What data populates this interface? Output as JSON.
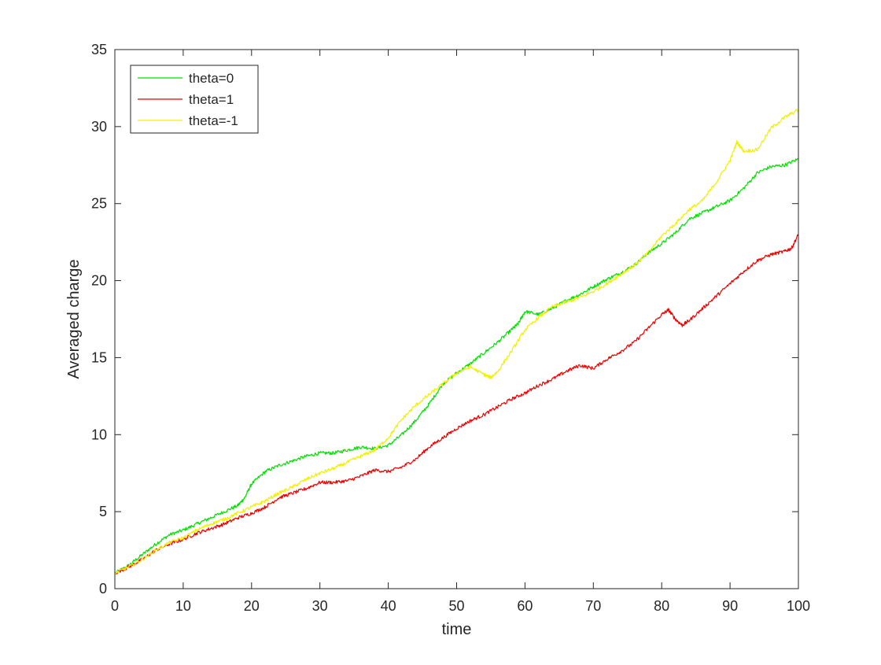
{
  "chart_data": {
    "type": "line",
    "title": "",
    "xlabel": "time",
    "ylabel": "Averaged charge",
    "xlim": [
      0,
      100
    ],
    "ylim": [
      0,
      35
    ],
    "xticks": [
      0,
      10,
      20,
      30,
      40,
      50,
      60,
      70,
      80,
      90,
      100
    ],
    "yticks": [
      0,
      5,
      10,
      15,
      20,
      25,
      30,
      35
    ],
    "grid": false,
    "legend_position": "top-left",
    "series": [
      {
        "name": "theta=0",
        "color": "#00e000",
        "x": [
          0,
          2,
          4,
          6,
          8,
          10,
          12,
          14,
          16,
          18,
          19,
          20,
          22,
          24,
          26,
          28,
          30,
          32,
          34,
          36,
          38,
          40,
          42,
          44,
          46,
          48,
          50,
          52,
          54,
          56,
          58,
          59,
          60,
          62,
          64,
          66,
          68,
          70,
          72,
          74,
          76,
          78,
          80,
          82,
          84,
          86,
          88,
          90,
          92,
          94,
          96,
          98,
          100
        ],
        "y": [
          1.0,
          1.5,
          2.2,
          2.9,
          3.5,
          3.8,
          4.2,
          4.6,
          5.0,
          5.4,
          5.9,
          6.8,
          7.6,
          8.0,
          8.3,
          8.6,
          8.8,
          8.8,
          9.0,
          9.2,
          9.1,
          9.3,
          10.0,
          10.9,
          12.0,
          13.3,
          14.0,
          14.6,
          15.3,
          16.0,
          16.8,
          17.2,
          18.0,
          17.8,
          18.2,
          18.7,
          19.1,
          19.6,
          20.1,
          20.5,
          21.0,
          21.8,
          22.4,
          23.1,
          24.0,
          24.4,
          24.8,
          25.2,
          26.0,
          27.0,
          27.4,
          27.5,
          27.9
        ]
      },
      {
        "name": "theta=1",
        "color": "#ee0000",
        "x": [
          0,
          2,
          4,
          6,
          8,
          10,
          12,
          14,
          16,
          18,
          20,
          22,
          24,
          26,
          28,
          30,
          32,
          34,
          36,
          38,
          40,
          42,
          44,
          46,
          48,
          50,
          52,
          54,
          56,
          58,
          60,
          62,
          64,
          66,
          68,
          70,
          72,
          74,
          76,
          78,
          80,
          81,
          82,
          83,
          84,
          86,
          88,
          90,
          92,
          94,
          96,
          98,
          99,
          100
        ],
        "y": [
          1.0,
          1.4,
          1.9,
          2.5,
          2.9,
          3.2,
          3.6,
          3.9,
          4.2,
          4.6,
          4.9,
          5.3,
          5.9,
          6.2,
          6.5,
          6.9,
          6.9,
          7.0,
          7.3,
          7.7,
          7.6,
          7.9,
          8.4,
          9.2,
          9.8,
          10.4,
          10.9,
          11.3,
          11.8,
          12.3,
          12.7,
          13.2,
          13.6,
          14.1,
          14.5,
          14.3,
          14.9,
          15.4,
          16.0,
          16.9,
          17.8,
          18.1,
          17.5,
          17.1,
          17.4,
          18.2,
          19.0,
          19.8,
          20.6,
          21.3,
          21.7,
          21.9,
          22.1,
          23.0
        ]
      },
      {
        "name": "theta=-1",
        "color": "#f0f000",
        "x": [
          0,
          2,
          4,
          6,
          8,
          10,
          12,
          14,
          16,
          18,
          20,
          22,
          24,
          26,
          28,
          30,
          32,
          34,
          36,
          38,
          40,
          42,
          44,
          46,
          48,
          50,
          52,
          54,
          55,
          56,
          58,
          60,
          62,
          64,
          66,
          68,
          70,
          72,
          74,
          76,
          78,
          80,
          82,
          84,
          86,
          88,
          90,
          91,
          92,
          94,
          96,
          98,
          100
        ],
        "y": [
          1.0,
          1.4,
          1.9,
          2.5,
          3.0,
          3.3,
          3.8,
          4.2,
          4.5,
          4.9,
          5.3,
          5.7,
          6.2,
          6.6,
          7.1,
          7.5,
          7.8,
          8.2,
          8.6,
          9.0,
          9.8,
          11.0,
          11.9,
          12.6,
          13.3,
          14.0,
          14.4,
          13.9,
          13.7,
          14.1,
          15.4,
          16.8,
          17.6,
          18.3,
          18.6,
          18.9,
          19.3,
          19.8,
          20.4,
          21.0,
          21.8,
          22.9,
          23.7,
          24.6,
          25.2,
          26.4,
          27.8,
          29.0,
          28.4,
          28.5,
          29.9,
          30.6,
          31.1
        ]
      }
    ]
  }
}
